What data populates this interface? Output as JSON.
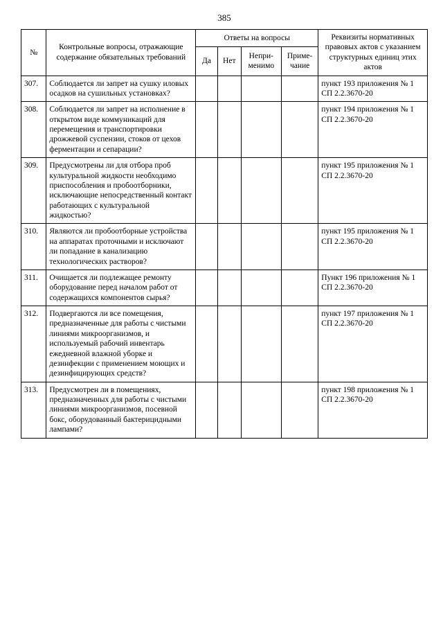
{
  "pageNumber": "385",
  "header": {
    "num": "№",
    "question": "Контрольные вопросы, отражающие содержание обязательных требований",
    "answersGroup": "Ответы на вопросы",
    "da": "Да",
    "net": "Нет",
    "nep": "Непри-\nменимо",
    "prim": "Приме-\nчание",
    "ref": "Реквизиты нормативных правовых актов с указанием структурных единиц этих актов"
  },
  "rows": [
    {
      "n": "307.",
      "q": "Соблюдается ли запрет на сушку иловых осадков на сушильных установках?",
      "ref": "пункт 193 приложения № 1 СП 2.2.3670-20"
    },
    {
      "n": "308.",
      "q": "Соблюдается ли запрет на исполнение в открытом виде коммуникаций для перемещения и транспортировки дрожжевой суспензии, стоков от цехов ферментации и сепарации?",
      "ref": "пункт 194 приложения № 1 СП 2.2.3670-20"
    },
    {
      "n": "309.",
      "q": "Предусмотрены ли для отбора проб культуральной жидкости необходимо приспособления и пробоотборники, исключающие непосредственный контакт работающих с культуральной жидкостью?",
      "ref": "пункт 195 приложения № 1 СП 2.2.3670-20"
    },
    {
      "n": "310.",
      "q": "Являются ли пробоотборные устройства на аппаратах проточными и исключают ли попадание в канализацию технологических растворов?",
      "ref": "пункт 195 приложения № 1 СП 2.2.3670-20"
    },
    {
      "n": "311.",
      "q": "Очищается ли подлежащее ремонту оборудование перед началом работ от содержащихся компонентов сырья?",
      "ref": "Пункт 196 приложения № 1 СП 2.2.3670-20"
    },
    {
      "n": "312.",
      "q": "Подвергаются ли все помещения, предназначенные для работы с чистыми линиями микроорганизмов, и используемый рабочий инвентарь ежедневной влажной уборке и дезинфекции с применением моющих и дезинфицирующих средств?",
      "ref": "пункт 197 приложения № 1 СП 2.2.3670-20"
    },
    {
      "n": "313.",
      "q": "Предусмотрен ли в помещениях, предназначенных для работы с чистыми линиями микроорганизмов, посевной бокс, оборудованный бактерицидными лампами?",
      "ref": "пункт 198 приложения № 1 СП 2.2.3670-20"
    }
  ]
}
